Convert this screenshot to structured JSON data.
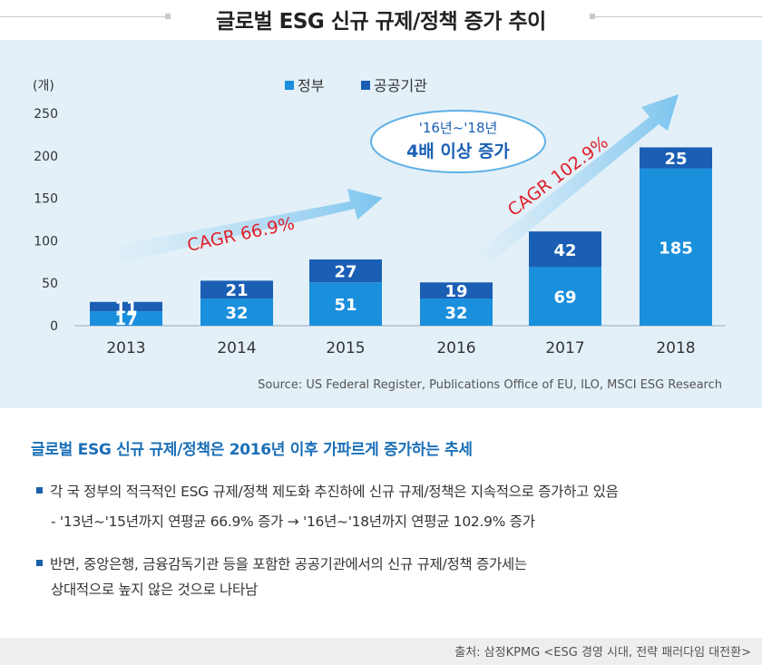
{
  "title": "글로벌 ESG 신규 규제/정책 증가 추이",
  "chart_data": {
    "type": "bar",
    "stacked": true,
    "ylabel": "(개)",
    "ylim": [
      0,
      250
    ],
    "yticks": [
      0,
      50,
      100,
      150,
      200,
      250
    ],
    "categories": [
      "2013",
      "2014",
      "2015",
      "2016",
      "2017",
      "2018"
    ],
    "series": [
      {
        "name": "정부",
        "values": [
          17,
          32,
          51,
          32,
          69,
          185
        ],
        "color": "#1a8fdc"
      },
      {
        "name": "공공기관",
        "values": [
          11,
          21,
          27,
          19,
          42,
          25
        ],
        "color": "#1a5fb4"
      }
    ],
    "legend_position": "top-center",
    "grid": false,
    "annotations": {
      "cagr_1": "CAGR 66.9%",
      "cagr_2": "CAGR 102.9%",
      "bubble_line1": "'16년~'18년",
      "bubble_line2": "4배 이상 증가"
    },
    "source": "Source: US Federal Register, Publications Office of EU, ILO, MSCI ESG Research"
  },
  "summary": {
    "title": "글로벌 ESG 신규 규제/정책은 2016년 이후 가파르게 증가하는 추세",
    "bullet1": "각 국 정부의 적극적인 ESG 규제/정책 제도화 추진하에 신규 규제/정책은 지속적으로 증가하고 있음",
    "bullet1_sub": "- '13년~'15년까지 연평균 66.9% 증가 → '16년~'18년까지 연평균 102.9% 증가",
    "bullet2": "반면, 중앙은행, 금융감독기관 등을 포함한 공공기관에서의 신규 규제/정책 증가세는",
    "bullet2_cont": "상대적으로 높지 않은 것으로 나타남"
  },
  "footnote": "출처: 삼정KPMG <ESG 경영 시대, 전략 패러다임 대전환>"
}
